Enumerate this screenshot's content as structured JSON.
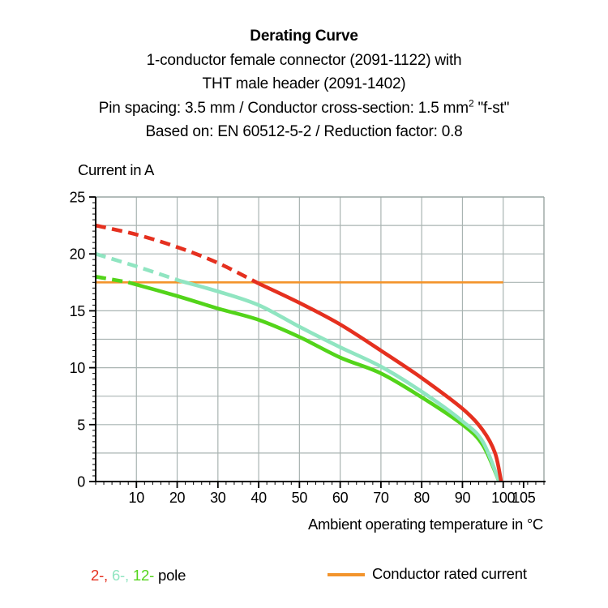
{
  "header": {
    "title": "Derating Curve",
    "line2": "1-conductor female connector (2091-1122) with",
    "line3": "THT male header (2091-1402)",
    "line4_pre": "Pin spacing: 3.5 mm / Conductor cross-section: 1.5 mm",
    "line4_sup": "2",
    "line4_post": " \"f-st\"",
    "line5": "Based on: EN 60512-5-2 / Reduction factor: 0.8"
  },
  "legend": {
    "poles": [
      {
        "label": "2-,",
        "color": "#e5301f"
      },
      {
        "label": "6-,",
        "color": "#90e5c1"
      },
      {
        "label": "12-",
        "color": "#53d41a"
      }
    ],
    "pole_suffix": " pole",
    "rated_label": "Conductor rated current",
    "rated_color": "#f3942c"
  },
  "chart_data": {
    "type": "line",
    "title": "Derating Curve",
    "xlabel": "Ambient operating temperature in °C",
    "ylabel": "Current in A",
    "xlim": [
      0,
      110
    ],
    "ylim": [
      0,
      25
    ],
    "x_major_ticks": [
      10,
      20,
      30,
      40,
      50,
      60,
      70,
      80,
      90,
      100,
      105
    ],
    "x_minor_step": 2,
    "x_gridlines": [
      10,
      20,
      30,
      40,
      50,
      60,
      70,
      80,
      90,
      100
    ],
    "y_major_ticks": [
      0,
      5,
      10,
      15,
      20,
      25
    ],
    "y_minor_step": 0.5,
    "y_grid_step": 2.5,
    "grid": true,
    "grid_color": "#a9b4b2",
    "frame_color": "#9aa5a3",
    "axis_color": "#000000",
    "series": [
      {
        "name": "12-pole",
        "color": "#53d41a",
        "dash_until": 8,
        "points": [
          [
            0,
            18.0
          ],
          [
            8,
            17.5
          ],
          [
            20,
            16.3
          ],
          [
            30,
            15.2
          ],
          [
            40,
            14.2
          ],
          [
            50,
            12.7
          ],
          [
            60,
            10.9
          ],
          [
            70,
            9.5
          ],
          [
            80,
            7.4
          ],
          [
            90,
            5.0
          ],
          [
            95,
            3.2
          ],
          [
            99,
            0
          ]
        ]
      },
      {
        "name": "6-pole",
        "color": "#90e5c1",
        "dash_until": 21,
        "points": [
          [
            0,
            20.0
          ],
          [
            10,
            18.9
          ],
          [
            21,
            17.6
          ],
          [
            30,
            16.7
          ],
          [
            40,
            15.5
          ],
          [
            50,
            13.6
          ],
          [
            60,
            11.8
          ],
          [
            70,
            10.1
          ],
          [
            80,
            7.9
          ],
          [
            90,
            5.3
          ],
          [
            95,
            3.5
          ],
          [
            99,
            0
          ]
        ]
      },
      {
        "name": "2-pole",
        "color": "#e5301f",
        "dash_until": 40,
        "points": [
          [
            0,
            22.5
          ],
          [
            10,
            21.7
          ],
          [
            20,
            20.6
          ],
          [
            30,
            19.2
          ],
          [
            40,
            17.4
          ],
          [
            50,
            15.7
          ],
          [
            60,
            13.8
          ],
          [
            70,
            11.5
          ],
          [
            80,
            9.1
          ],
          [
            90,
            6.4
          ],
          [
            95,
            4.5
          ],
          [
            98,
            2.5
          ],
          [
            99.5,
            0
          ]
        ]
      }
    ],
    "reference_line": {
      "label": "Conductor rated current",
      "color": "#f3942c",
      "y": 17.5,
      "x_start": 0,
      "x_end": 100
    },
    "legend_position": "bottom"
  }
}
